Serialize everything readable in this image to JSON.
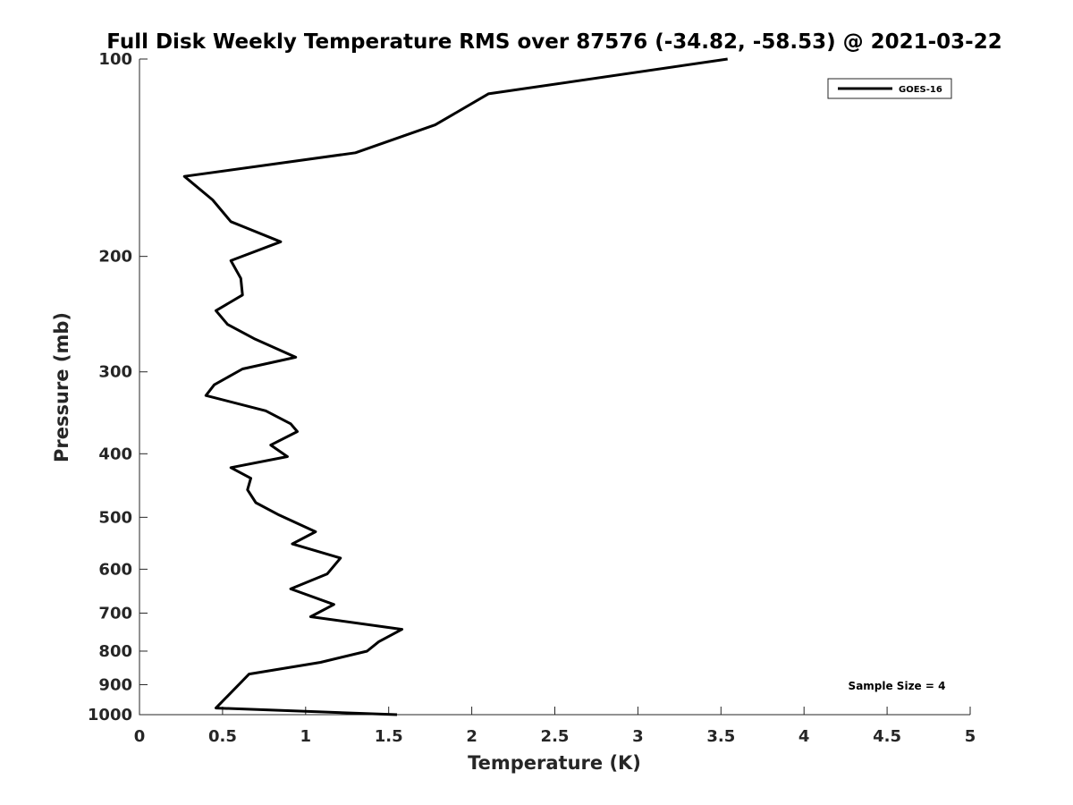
{
  "chart_data": {
    "type": "line",
    "title": "Full Disk Weekly Temperature RMS over 87576 (-34.82, -58.53) @ 2021-03-22",
    "xlabel": "Temperature (K)",
    "ylabel": "Pressure (mb)",
    "xlim": [
      0,
      5
    ],
    "ylim": [
      1000,
      100
    ],
    "yscale": "log",
    "ylim_note": "inverted axis",
    "xticks": [
      "0",
      "0.5",
      "1",
      "1.5",
      "2",
      "2.5",
      "3",
      "3.5",
      "4",
      "4.5",
      "5"
    ],
    "xtick_values": [
      0,
      0.5,
      1,
      1.5,
      2,
      2.5,
      3,
      3.5,
      4,
      4.5,
      5
    ],
    "yticks": [
      "100",
      "200",
      "300",
      "400",
      "500",
      "600",
      "700",
      "800",
      "900",
      "1000"
    ],
    "ytick_values": [
      100,
      200,
      300,
      400,
      500,
      600,
      700,
      800,
      900,
      1000
    ],
    "grid": false,
    "legend_position": "top-right",
    "line_color": "#000000",
    "series": [
      {
        "name": "GOES-16",
        "x": [
          3.54,
          2.1,
          1.78,
          1.3,
          0.27,
          0.44,
          0.55,
          0.85,
          0.55,
          0.61,
          0.62,
          0.46,
          0.53,
          0.69,
          0.94,
          0.62,
          0.45,
          0.4,
          0.76,
          0.91,
          0.95,
          0.79,
          0.89,
          0.55,
          0.67,
          0.65,
          0.7,
          0.84,
          1.06,
          0.92,
          1.21,
          1.13,
          0.91,
          1.17,
          1.03,
          1.58,
          1.44,
          1.37,
          1.09,
          0.66,
          0.46,
          1.55
        ],
        "y": [
          100,
          113,
          126,
          139,
          151,
          164,
          177,
          190,
          203,
          216,
          229,
          242,
          254,
          267,
          285,
          297,
          314,
          326,
          344,
          360,
          370,
          388,
          404,
          420,
          436,
          454,
          475,
          496,
          526,
          549,
          577,
          610,
          643,
          679,
          709,
          741,
          774,
          800,
          832,
          867,
          977,
          1000
        ]
      }
    ],
    "annotations": [
      "Sample Size = 4"
    ]
  }
}
